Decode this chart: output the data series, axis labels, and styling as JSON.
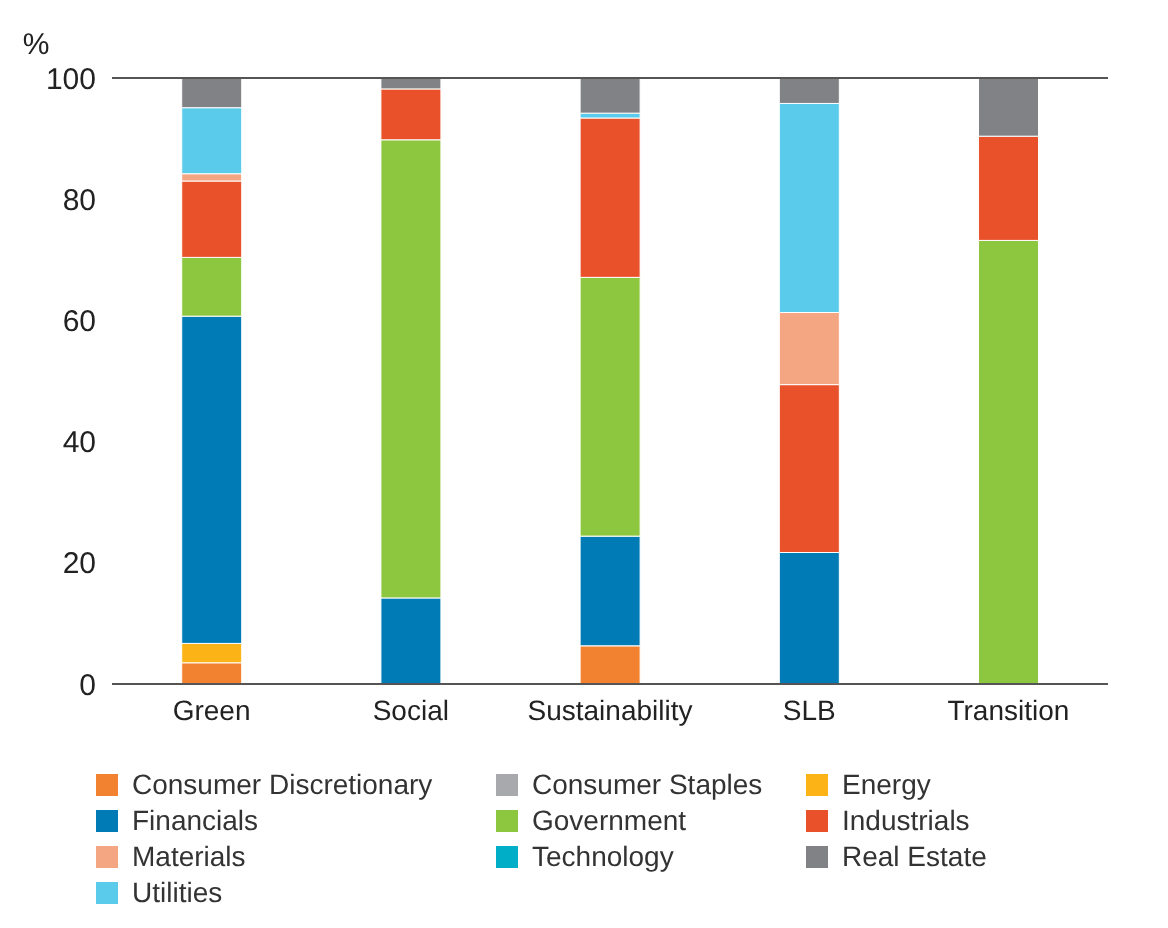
{
  "chart_data": {
    "type": "bar",
    "stacked": true,
    "ylabel": "%",
    "categories": [
      "Green",
      "Social",
      "Sustainability",
      "SLB",
      "Transition"
    ],
    "ylim": [
      0,
      100
    ],
    "yticks": [
      0,
      20,
      40,
      60,
      80,
      100
    ],
    "grid": false,
    "legend": "bottom",
    "series": [
      {
        "name": "Consumer Discretionary",
        "color": "#f28130",
        "values": [
          3.5,
          null,
          6.3,
          null,
          null
        ]
      },
      {
        "name": "Consumer Staples",
        "color": "#a7a9ac",
        "values": [
          null,
          null,
          null,
          null,
          null
        ]
      },
      {
        "name": "Energy",
        "color": "#fbb316",
        "values": [
          3.2,
          null,
          null,
          null,
          null
        ]
      },
      {
        "name": "Financials",
        "color": "#007bb6",
        "values": [
          54.0,
          14.2,
          18.1,
          21.7,
          null
        ]
      },
      {
        "name": "Government",
        "color": "#8dc63f",
        "values": [
          9.7,
          75.6,
          42.7,
          null,
          73.2
        ]
      },
      {
        "name": "Industrials",
        "color": "#e9512a",
        "values": [
          12.6,
          8.4,
          26.3,
          27.7,
          17.2
        ]
      },
      {
        "name": "Materials",
        "color": "#f4a582",
        "values": [
          1.2,
          null,
          null,
          11.9,
          null
        ]
      },
      {
        "name": "Technology",
        "color": "#00aec7",
        "values": [
          null,
          null,
          null,
          null,
          null
        ]
      },
      {
        "name": "Real Estate",
        "color": "#808285",
        "values": [
          4.9,
          1.8,
          5.8,
          4.2,
          9.6
        ]
      },
      {
        "name": "Utilities",
        "color": "#5bcbeb",
        "values": [
          10.9,
          null,
          0.8,
          34.5,
          null
        ]
      }
    ]
  }
}
